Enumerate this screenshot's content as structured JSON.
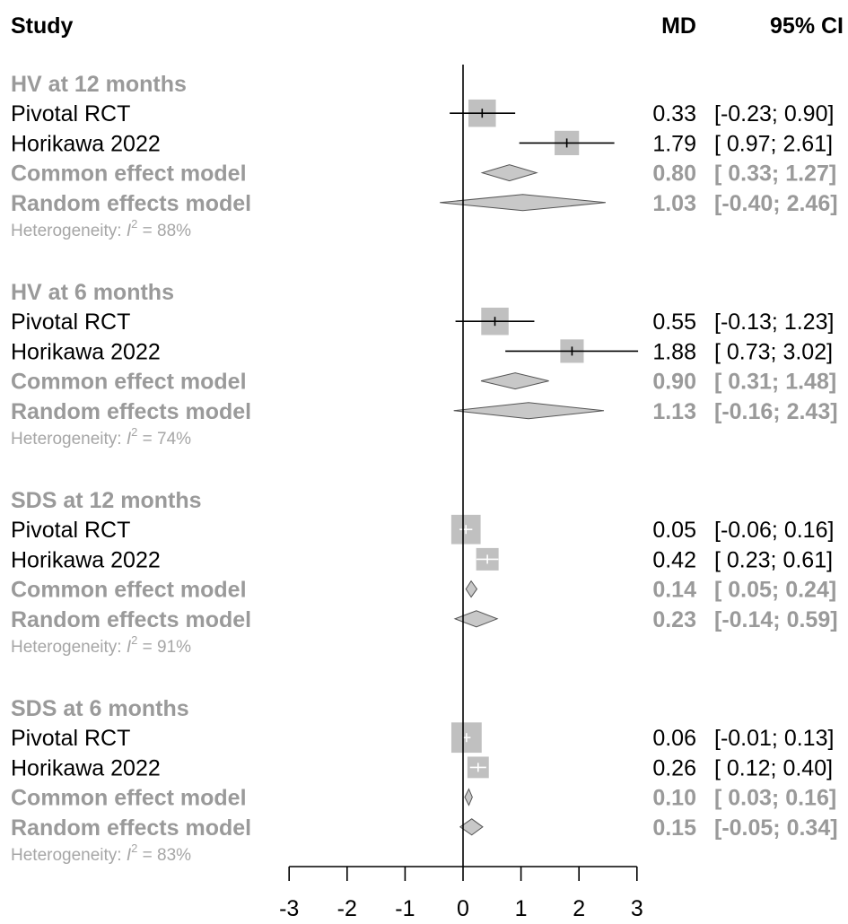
{
  "chart_data": {
    "type": "forest",
    "headers": {
      "study": "Study",
      "md": "MD",
      "ci": "95% CI"
    },
    "xlim": [
      -3,
      3
    ],
    "x_ticks": [
      -3,
      -2,
      -1,
      0,
      1,
      2,
      3
    ],
    "reference_line": 0,
    "groups": [
      {
        "label": "HV at 12 months",
        "heterogeneity": {
          "prefix": "Heterogeneity: ",
          "symbol": "I",
          "sup": "2",
          "suffix": " = 88%"
        },
        "rows": [
          {
            "label": "Pivotal RCT",
            "kind": "study",
            "md": 0.33,
            "lo": -0.23,
            "hi": 0.9,
            "md_text": "0.33",
            "ci_text": "[-0.23; 0.90]",
            "weight": 0.75
          },
          {
            "label": "Horikawa 2022",
            "kind": "study",
            "md": 1.79,
            "lo": 0.97,
            "hi": 2.61,
            "md_text": "1.79",
            "ci_text": "[ 0.97; 2.61]",
            "weight": 0.6
          },
          {
            "label": "Common effect model",
            "kind": "common",
            "md": 0.8,
            "lo": 0.33,
            "hi": 1.27,
            "md_text": "0.80",
            "ci_text": "[ 0.33; 1.27]"
          },
          {
            "label": "Random effects model",
            "kind": "random",
            "md": 1.03,
            "lo": -0.4,
            "hi": 2.46,
            "md_text": "1.03",
            "ci_text": "[-0.40; 2.46]"
          }
        ]
      },
      {
        "label": "HV at 6 months",
        "heterogeneity": {
          "prefix": "Heterogeneity: ",
          "symbol": "I",
          "sup": "2",
          "suffix": " = 74%"
        },
        "rows": [
          {
            "label": "Pivotal RCT",
            "kind": "study",
            "md": 0.55,
            "lo": -0.13,
            "hi": 1.23,
            "md_text": "0.55",
            "ci_text": "[-0.13; 1.23]",
            "weight": 0.75
          },
          {
            "label": "Horikawa 2022",
            "kind": "study",
            "md": 1.88,
            "lo": 0.73,
            "hi": 3.02,
            "md_text": "1.88",
            "ci_text": "[ 0.73; 3.02]",
            "weight": 0.55
          },
          {
            "label": "Common effect model",
            "kind": "common",
            "md": 0.9,
            "lo": 0.31,
            "hi": 1.48,
            "md_text": "0.90",
            "ci_text": "[ 0.31; 1.48]"
          },
          {
            "label": "Random effects model",
            "kind": "random",
            "md": 1.13,
            "lo": -0.16,
            "hi": 2.43,
            "md_text": "1.13",
            "ci_text": "[-0.16; 2.43]"
          }
        ]
      },
      {
        "label": "SDS at 12 months",
        "heterogeneity": {
          "prefix": "Heterogeneity: ",
          "symbol": "I",
          "sup": "2",
          "suffix": " = 91%"
        },
        "rows": [
          {
            "label": "Pivotal RCT",
            "kind": "study",
            "md": 0.05,
            "lo": -0.06,
            "hi": 0.16,
            "md_text": "0.05",
            "ci_text": "[-0.06; 0.16]",
            "weight": 0.85
          },
          {
            "label": "Horikawa 2022",
            "kind": "study",
            "md": 0.42,
            "lo": 0.23,
            "hi": 0.61,
            "md_text": "0.42",
            "ci_text": "[ 0.23; 0.61]",
            "weight": 0.5
          },
          {
            "label": "Common effect model",
            "kind": "common",
            "md": 0.14,
            "lo": 0.05,
            "hi": 0.24,
            "md_text": "0.14",
            "ci_text": "[ 0.05; 0.24]"
          },
          {
            "label": "Random effects model",
            "kind": "random",
            "md": 0.23,
            "lo": -0.14,
            "hi": 0.59,
            "md_text": "0.23",
            "ci_text": "[-0.14; 0.59]"
          }
        ]
      },
      {
        "label": "SDS at 6 months",
        "heterogeneity": {
          "prefix": "Heterogeneity: ",
          "symbol": "I",
          "sup": "2",
          "suffix": " = 83%"
        },
        "rows": [
          {
            "label": "Pivotal RCT",
            "kind": "study",
            "md": 0.06,
            "lo": -0.01,
            "hi": 0.13,
            "md_text": "0.06",
            "ci_text": "[-0.01; 0.13]",
            "weight": 0.9
          },
          {
            "label": "Horikawa 2022",
            "kind": "study",
            "md": 0.26,
            "lo": 0.12,
            "hi": 0.4,
            "md_text": "0.26",
            "ci_text": "[ 0.12; 0.40]",
            "weight": 0.45
          },
          {
            "label": "Common effect model",
            "kind": "common",
            "md": 0.1,
            "lo": 0.03,
            "hi": 0.16,
            "md_text": "0.10",
            "ci_text": "[ 0.03; 0.16]"
          },
          {
            "label": "Random effects model",
            "kind": "random",
            "md": 0.15,
            "lo": -0.05,
            "hi": 0.34,
            "md_text": "0.15",
            "ci_text": "[-0.05; 0.34]"
          }
        ]
      }
    ],
    "colors": {
      "square": "#c0c0c0",
      "diamond": "#c8c8c8",
      "line": "#000000",
      "summary_text": "#9a9a9a"
    }
  }
}
